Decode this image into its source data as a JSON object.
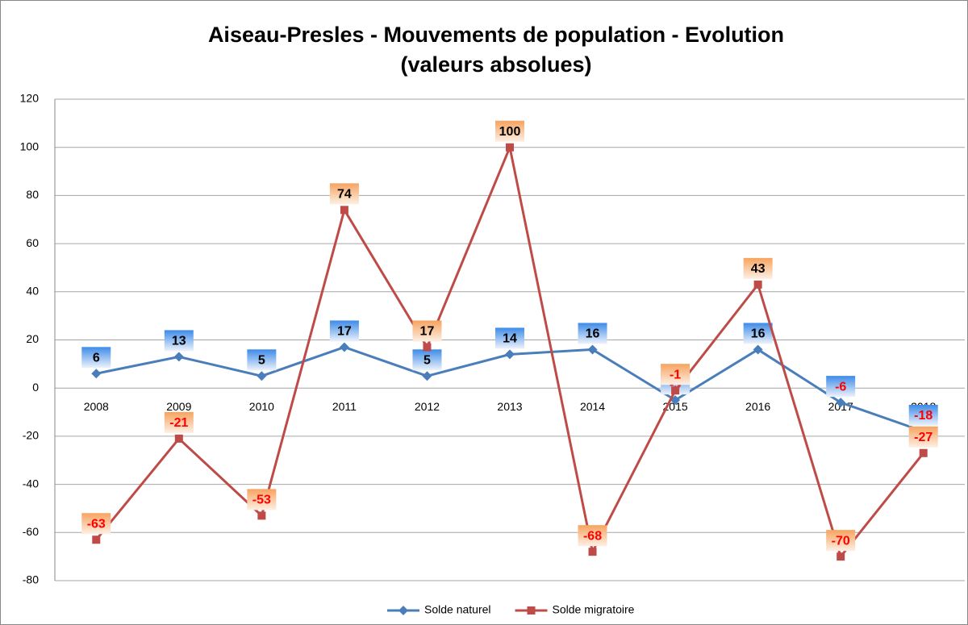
{
  "chart_data": {
    "type": "line",
    "title": "Aiseau-Presles - Mouvements de population - Evolution",
    "subtitle": "(valeurs absolues)",
    "categories": [
      "2008",
      "2009",
      "2010",
      "2011",
      "2012",
      "2013",
      "2014",
      "2015",
      "2016",
      "2017",
      "2018"
    ],
    "series": [
      {
        "name": "Solde naturel",
        "color": "#4a7ebb",
        "marker": "diamond",
        "values": [
          6,
          13,
          5,
          17,
          5,
          14,
          16,
          -5,
          16,
          -6,
          -18
        ]
      },
      {
        "name": "Solde migratoire",
        "color": "#be4b48",
        "marker": "square",
        "values": [
          -63,
          -21,
          -53,
          74,
          17,
          100,
          -68,
          -1,
          43,
          -70,
          -27
        ]
      }
    ],
    "ylim": [
      -80,
      120
    ],
    "yticks": [
      -80,
      -60,
      -40,
      -20,
      0,
      20,
      40,
      60,
      80,
      100,
      120
    ],
    "grid": true,
    "legend": "bottom"
  }
}
